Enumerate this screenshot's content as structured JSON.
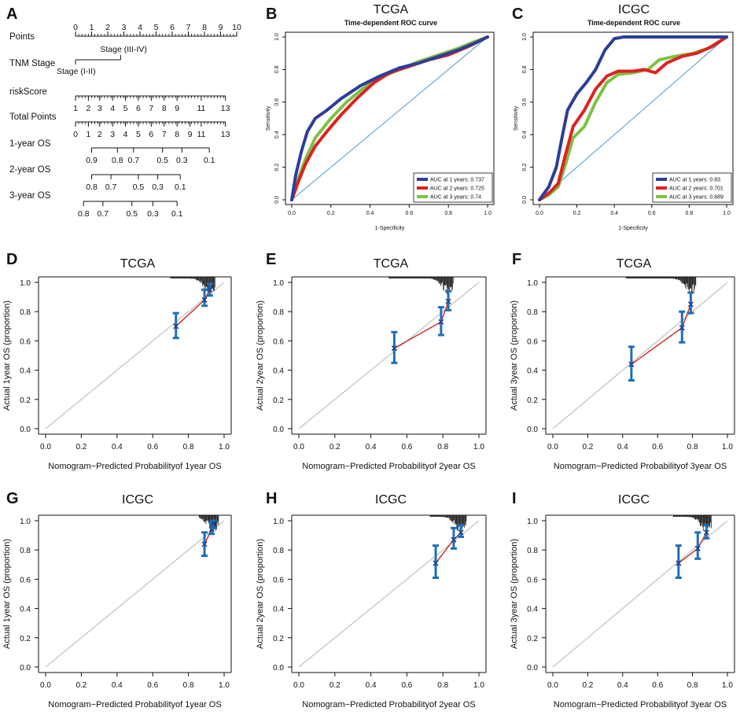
{
  "panel_letters": [
    "A",
    "B",
    "C",
    "D",
    "E",
    "F",
    "G",
    "H",
    "I"
  ],
  "chart_data": [
    {
      "type": "nomogram",
      "panel": "A",
      "rows": [
        {
          "label": "Points",
          "ticks": [
            "0",
            "1",
            "2",
            "3",
            "4",
            "5",
            "6",
            "7",
            "8",
            "9",
            "10"
          ],
          "values": [
            0,
            1,
            2,
            3,
            4,
            5,
            6,
            7,
            8,
            9,
            10
          ]
        },
        {
          "label": "TNM Stage",
          "ticks": [
            "Stage (I-II)",
            "Stage (III-IV)"
          ],
          "values": [
            0,
            2.8
          ]
        },
        {
          "label": "riskScore",
          "ticks": [
            "1",
            "2",
            "3",
            "4",
            "5",
            "6",
            "7",
            "8",
            "9",
            "11",
            "13"
          ],
          "values": [
            0,
            0.8,
            1.5,
            2.3,
            3.1,
            3.9,
            4.7,
            5.5,
            6.3,
            7.8,
            9.3
          ]
        },
        {
          "label": "Total Points",
          "ticks": [
            "0",
            "1",
            "2",
            "3",
            "4",
            "5",
            "6",
            "7",
            "8",
            "9",
            "11",
            "13"
          ],
          "values": [
            0,
            0.8,
            1.5,
            2.3,
            3.1,
            3.9,
            4.7,
            5.5,
            6.3,
            7.1,
            7.8,
            9.3
          ]
        },
        {
          "label": "1-year OS",
          "ticks": [
            "0.9",
            "0.8",
            "0.7",
            "0.5",
            "0.3",
            "0.1"
          ],
          "values": [
            1.0,
            2.6,
            3.6,
            5.4,
            6.6,
            8.3
          ]
        },
        {
          "label": "2-year OS",
          "ticks": [
            "0.8",
            "0.7",
            "0.5",
            "0.3",
            "0.1"
          ],
          "values": [
            1.0,
            2.2,
            3.9,
            5.1,
            6.5
          ]
        },
        {
          "label": "3-year OS",
          "ticks": [
            "0.8",
            "0.7",
            "0.5",
            "0.3",
            "0.1"
          ],
          "values": [
            0.5,
            1.7,
            3.5,
            4.8,
            6.3
          ]
        }
      ]
    },
    {
      "type": "line",
      "panel": "B",
      "title": "TCGA",
      "subtitle": "Time-dependent ROC curve",
      "xlabel": "1-Specificity",
      "ylabel": "Sensitivity",
      "xlim": [
        0,
        1
      ],
      "ylim": [
        0,
        1
      ],
      "xticks": [
        "0.0",
        "0.2",
        "0.4",
        "0.6",
        "0.8",
        "1.0"
      ],
      "yticks": [
        "0.0",
        "0.2",
        "0.4",
        "0.6",
        "0.8",
        "1.0"
      ],
      "diagonal_color": "#6aaad4",
      "series": [
        {
          "name": "AUC at 1 years: 0.737",
          "color": "#2c3e9a",
          "points": [
            [
              0,
              0
            ],
            [
              0.02,
              0.15
            ],
            [
              0.05,
              0.3
            ],
            [
              0.08,
              0.42
            ],
            [
              0.12,
              0.5
            ],
            [
              0.18,
              0.55
            ],
            [
              0.25,
              0.62
            ],
            [
              0.35,
              0.7
            ],
            [
              0.45,
              0.76
            ],
            [
              0.55,
              0.81
            ],
            [
              0.65,
              0.84
            ],
            [
              0.75,
              0.88
            ],
            [
              0.85,
              0.92
            ],
            [
              0.93,
              0.96
            ],
            [
              1,
              1
            ]
          ]
        },
        {
          "name": "AUC at 2 years: 0.725",
          "color": "#e02020",
          "points": [
            [
              0,
              0
            ],
            [
              0.03,
              0.1
            ],
            [
              0.07,
              0.22
            ],
            [
              0.12,
              0.33
            ],
            [
              0.18,
              0.42
            ],
            [
              0.25,
              0.52
            ],
            [
              0.33,
              0.62
            ],
            [
              0.42,
              0.72
            ],
            [
              0.5,
              0.78
            ],
            [
              0.6,
              0.82
            ],
            [
              0.7,
              0.86
            ],
            [
              0.8,
              0.89
            ],
            [
              0.9,
              0.94
            ],
            [
              1,
              1
            ]
          ]
        },
        {
          "name": "AUC at 3 years: 0.74",
          "color": "#7cc242",
          "points": [
            [
              0,
              0
            ],
            [
              0.03,
              0.12
            ],
            [
              0.07,
              0.25
            ],
            [
              0.12,
              0.38
            ],
            [
              0.2,
              0.5
            ],
            [
              0.28,
              0.6
            ],
            [
              0.36,
              0.68
            ],
            [
              0.45,
              0.75
            ],
            [
              0.55,
              0.8
            ],
            [
              0.65,
              0.85
            ],
            [
              0.75,
              0.89
            ],
            [
              0.85,
              0.93
            ],
            [
              0.93,
              0.97
            ],
            [
              1,
              1
            ]
          ]
        }
      ]
    },
    {
      "type": "line",
      "panel": "C",
      "title": "ICGC",
      "subtitle": "Time-dependent ROC curve",
      "xlabel": "1-Specificity",
      "ylabel": "Sensitivity",
      "xlim": [
        0,
        1
      ],
      "ylim": [
        0,
        1
      ],
      "xticks": [
        "0.0",
        "0.2",
        "0.4",
        "0.6",
        "0.8",
        "1.0"
      ],
      "yticks": [
        "0.0",
        "0.2",
        "0.4",
        "0.6",
        "0.8",
        "1.0"
      ],
      "diagonal_color": "#6aaad4",
      "series": [
        {
          "name": "AUC at 1 years: 0.83",
          "color": "#2c3e9a",
          "points": [
            [
              0,
              0
            ],
            [
              0.05,
              0.08
            ],
            [
              0.09,
              0.2
            ],
            [
              0.12,
              0.38
            ],
            [
              0.15,
              0.55
            ],
            [
              0.2,
              0.65
            ],
            [
              0.25,
              0.72
            ],
            [
              0.3,
              0.8
            ],
            [
              0.35,
              0.92
            ],
            [
              0.4,
              0.99
            ],
            [
              0.45,
              1
            ],
            [
              0.85,
              1
            ],
            [
              1,
              1
            ]
          ]
        },
        {
          "name": "AUC at 2 years: 0.701",
          "color": "#e02020",
          "points": [
            [
              0,
              0
            ],
            [
              0.05,
              0.04
            ],
            [
              0.1,
              0.1
            ],
            [
              0.14,
              0.28
            ],
            [
              0.18,
              0.45
            ],
            [
              0.24,
              0.55
            ],
            [
              0.3,
              0.68
            ],
            [
              0.36,
              0.76
            ],
            [
              0.42,
              0.79
            ],
            [
              0.5,
              0.79
            ],
            [
              0.56,
              0.8
            ],
            [
              0.62,
              0.78
            ],
            [
              0.68,
              0.84
            ],
            [
              0.76,
              0.88
            ],
            [
              0.84,
              0.9
            ],
            [
              0.92,
              0.94
            ],
            [
              1,
              1
            ]
          ]
        },
        {
          "name": "AUC at 3 years: 0.689",
          "color": "#7cc242",
          "points": [
            [
              0,
              0
            ],
            [
              0.05,
              0.03
            ],
            [
              0.1,
              0.08
            ],
            [
              0.14,
              0.22
            ],
            [
              0.18,
              0.38
            ],
            [
              0.24,
              0.45
            ],
            [
              0.3,
              0.6
            ],
            [
              0.36,
              0.72
            ],
            [
              0.42,
              0.77
            ],
            [
              0.5,
              0.78
            ],
            [
              0.58,
              0.8
            ],
            [
              0.64,
              0.86
            ],
            [
              0.72,
              0.88
            ],
            [
              0.82,
              0.9
            ],
            [
              0.9,
              0.93
            ],
            [
              1,
              1
            ]
          ]
        }
      ]
    },
    {
      "type": "calibration",
      "panel": "D",
      "title": "TCGA",
      "xlabel": "Nomogram−Predicted Probabilityof 1year OS",
      "ylabel": "Actual 1year OS (proportion)",
      "points": [
        {
          "x": 0.73,
          "y": 0.7,
          "lo": 0.62,
          "hi": 0.79
        },
        {
          "x": 0.89,
          "y": 0.88,
          "lo": 0.84,
          "hi": 0.95
        },
        {
          "x": 0.92,
          "y": 0.95,
          "lo": 0.91,
          "hi": 0.99
        }
      ]
    },
    {
      "type": "calibration",
      "panel": "E",
      "title": "TCGA",
      "xlabel": "Nomogram−Predicted Probabilityof 2year OS",
      "ylabel": "Actual 2year OS (proportion)",
      "points": [
        {
          "x": 0.53,
          "y": 0.55,
          "lo": 0.45,
          "hi": 0.66
        },
        {
          "x": 0.79,
          "y": 0.73,
          "lo": 0.64,
          "hi": 0.83
        },
        {
          "x": 0.83,
          "y": 0.87,
          "lo": 0.81,
          "hi": 0.94
        }
      ]
    },
    {
      "type": "calibration",
      "panel": "F",
      "title": "TCGA",
      "xlabel": "Nomogram−Predicted Probabilityof 3year OS",
      "ylabel": "Actual 3year OS (proportion)",
      "points": [
        {
          "x": 0.45,
          "y": 0.44,
          "lo": 0.33,
          "hi": 0.56
        },
        {
          "x": 0.74,
          "y": 0.69,
          "lo": 0.59,
          "hi": 0.8
        },
        {
          "x": 0.79,
          "y": 0.85,
          "lo": 0.79,
          "hi": 0.93
        }
      ]
    },
    {
      "type": "calibration",
      "panel": "G",
      "title": "ICGC",
      "xlabel": "Nomogram−Predicted Probabilityof 1year OS",
      "ylabel": "Actual 1year OS (proportion)",
      "points": [
        {
          "x": 0.89,
          "y": 0.84,
          "lo": 0.76,
          "hi": 0.92
        },
        {
          "x": 0.93,
          "y": 0.94,
          "lo": 0.91,
          "hi": 0.99
        },
        {
          "x": 0.94,
          "y": 0.98,
          "lo": 0.95,
          "hi": 1.0
        }
      ]
    },
    {
      "type": "calibration",
      "panel": "H",
      "title": "ICGC",
      "xlabel": "Nomogram−Predicted Probabilityof 2year OS",
      "ylabel": "Actual 2year OS (proportion)",
      "points": [
        {
          "x": 0.76,
          "y": 0.71,
          "lo": 0.61,
          "hi": 0.83
        },
        {
          "x": 0.86,
          "y": 0.87,
          "lo": 0.81,
          "hi": 0.95
        },
        {
          "x": 0.9,
          "y": 0.92,
          "lo": 0.89,
          "hi": 0.97
        }
      ]
    },
    {
      "type": "calibration",
      "panel": "I",
      "title": "ICGC",
      "xlabel": "Nomogram−Predicted Probabilityof 3year OS",
      "ylabel": "Actual 3year OS (proportion)",
      "points": [
        {
          "x": 0.72,
          "y": 0.71,
          "lo": 0.61,
          "hi": 0.83
        },
        {
          "x": 0.83,
          "y": 0.81,
          "lo": 0.74,
          "hi": 0.92
        },
        {
          "x": 0.88,
          "y": 0.92,
          "lo": 0.88,
          "hi": 0.97
        }
      ]
    }
  ],
  "calibration_axes": {
    "xticks": [
      "0.0",
      "0.2",
      "0.4",
      "0.6",
      "0.8",
      "1.0"
    ],
    "yticks": [
      "0.0",
      "0.2",
      "0.4",
      "0.6",
      "0.8",
      "1.0"
    ],
    "xlim": [
      0,
      1
    ],
    "ylim": [
      0,
      1
    ]
  },
  "colors": {
    "ci_bar": "#1f6fb5",
    "fit_line": "#c8281e",
    "ideal_line": "#c8c8c8",
    "point": "#1f3c8a",
    "rug": "#111111"
  }
}
